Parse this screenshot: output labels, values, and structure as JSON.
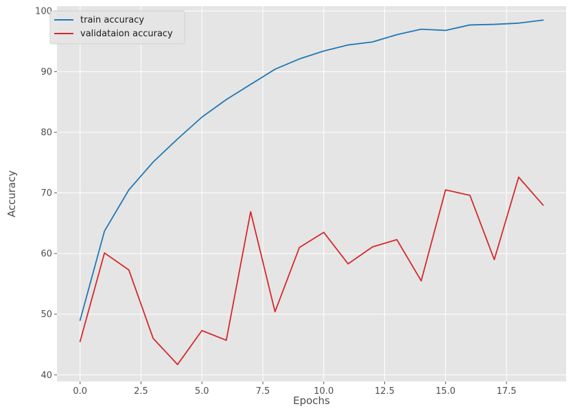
{
  "chart_data": {
    "type": "line",
    "title": "",
    "xlabel": "Epochs",
    "ylabel": "Accuracy",
    "xlim": [
      -0.95,
      19.95
    ],
    "ylim": [
      38.9,
      100.8
    ],
    "xticks": [
      0.0,
      2.5,
      5.0,
      7.5,
      10.0,
      12.5,
      15.0,
      17.5
    ],
    "xtick_labels": [
      "0.0",
      "2.5",
      "5.0",
      "7.5",
      "10.0",
      "12.5",
      "15.0",
      "17.5"
    ],
    "yticks": [
      40,
      50,
      60,
      70,
      80,
      90,
      100
    ],
    "ytick_labels": [
      "40",
      "50",
      "60",
      "70",
      "80",
      "90",
      "100"
    ],
    "grid": true,
    "legend_position": "top-left",
    "x": [
      0,
      1,
      2,
      3,
      4,
      5,
      6,
      7,
      8,
      9,
      10,
      11,
      12,
      13,
      14,
      15,
      16,
      17,
      18,
      19
    ],
    "series": [
      {
        "name": "train accuracy",
        "color": "#1f77b4",
        "values": [
          49.0,
          63.7,
          70.5,
          75.1,
          78.9,
          82.5,
          85.4,
          87.9,
          90.4,
          92.1,
          93.4,
          94.4,
          94.9,
          96.1,
          97.0,
          96.8,
          97.7,
          97.8,
          98.0,
          98.5
        ]
      },
      {
        "name": "validataion accuracy",
        "color": "#d62728",
        "values": [
          45.5,
          60.1,
          57.3,
          46.0,
          41.7,
          47.3,
          45.7,
          66.9,
          50.4,
          61.0,
          63.5,
          58.3,
          61.1,
          62.3,
          55.5,
          70.5,
          69.6,
          59.0,
          72.6,
          68.0
        ]
      }
    ]
  }
}
